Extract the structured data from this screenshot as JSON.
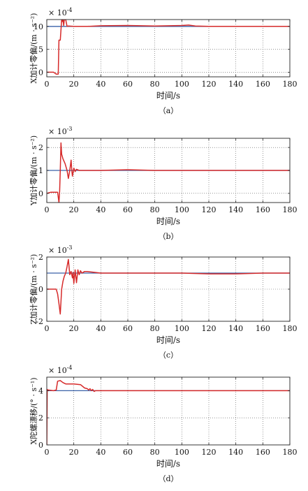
{
  "chart_data": [
    {
      "type": "line",
      "caption": "（a）",
      "multiplier": "× 10^-4",
      "multiplier_base": "× 10",
      "multiplier_exp": "-4",
      "ylabel": "X加计零偏/(m · s⁻²)",
      "xlabel": "时间/s",
      "xlim": [
        0,
        180
      ],
      "ylim": [
        -1,
        11.5
      ],
      "xticks": [
        0,
        20,
        40,
        60,
        80,
        100,
        120,
        140,
        160,
        180
      ],
      "yticks": [
        0,
        5,
        10
      ],
      "grid": true,
      "series": [
        {
          "color": "#3a62a8",
          "x": [
            0,
            180
          ],
          "y": [
            10,
            10
          ]
        },
        {
          "color": "#d62a2a",
          "x": [
            0,
            2,
            5,
            7,
            8.5,
            9,
            10,
            11,
            11.2,
            12,
            12.5,
            13,
            14,
            15,
            16,
            20,
            30,
            40,
            60,
            80,
            100,
            105,
            110,
            120,
            140,
            160,
            180
          ],
          "y": [
            0,
            0,
            0,
            -0.4,
            -0.4,
            7,
            7,
            11.5,
            11,
            11.5,
            10.2,
            11.5,
            11.5,
            10,
            10.1,
            10,
            10,
            10.15,
            10.2,
            10.1,
            10.2,
            10.3,
            10.1,
            10,
            10,
            10,
            10
          ]
        }
      ]
    },
    {
      "type": "line",
      "caption": "（b）",
      "multiplier": "× 10^-3",
      "multiplier_base": "× 10",
      "multiplier_exp": "-3",
      "ylabel": "Y加计零偏/(m · s⁻²)",
      "xlabel": "时间/s",
      "xlim": [
        0,
        180
      ],
      "ylim": [
        -0.4,
        2.4
      ],
      "xticks": [
        0,
        20,
        40,
        60,
        80,
        100,
        120,
        140,
        160,
        180
      ],
      "yticks": [
        0,
        1,
        2
      ],
      "grid": true,
      "series": [
        {
          "color": "#3a62a8",
          "x": [
            0,
            180
          ],
          "y": [
            1,
            1
          ]
        },
        {
          "color": "#d62a2a",
          "x": [
            0,
            3,
            8,
            9,
            9.5,
            10,
            10.5,
            11,
            12,
            13.5,
            15,
            16,
            17,
            18,
            18.5,
            19,
            20,
            21,
            22,
            24,
            30,
            40,
            60,
            80,
            100,
            120,
            140,
            160,
            180
          ],
          "y": [
            0,
            0.05,
            0.05,
            -0.4,
            0.1,
            1.0,
            2.2,
            1.7,
            1.5,
            1.3,
            1.0,
            0.65,
            1.0,
            1.45,
            1.0,
            0.75,
            1.1,
            0.95,
            1.05,
            1.0,
            1.0,
            1.0,
            1.03,
            1.0,
            1.0,
            1.0,
            1.0,
            1.0,
            1.0
          ]
        }
      ]
    },
    {
      "type": "line",
      "caption": "（c）",
      "multiplier": "× 10^-3",
      "multiplier_base": "× 10",
      "multiplier_exp": "-3",
      "ylabel": "Z加计零偏/(m · s⁻²)",
      "xlabel": "时间/s",
      "xlim": [
        0,
        180
      ],
      "ylim": [
        -2,
        2
      ],
      "xticks": [
        0,
        20,
        40,
        60,
        80,
        100,
        120,
        140,
        160,
        180
      ],
      "yticks": [
        -2,
        0,
        2
      ],
      "grid": true,
      "series": [
        {
          "color": "#3a62a8",
          "x": [
            0,
            180
          ],
          "y": [
            1,
            1
          ]
        },
        {
          "color": "#d62a2a",
          "x": [
            0,
            4,
            7,
            8,
            9,
            10,
            11,
            12,
            13,
            14,
            15,
            16,
            17,
            18,
            19,
            19.5,
            20,
            21,
            22,
            23,
            24,
            25,
            26,
            28,
            30,
            35,
            40,
            60,
            80,
            100,
            120,
            140,
            160,
            180
          ],
          "y": [
            0,
            0,
            0,
            -0.3,
            -0.9,
            -1.55,
            0.0,
            0.5,
            0.8,
            1.0,
            1.4,
            1.85,
            0.9,
            1.1,
            0.7,
            1.05,
            0.35,
            1.2,
            0.4,
            1.2,
            0.9,
            1.15,
            1.0,
            1.1,
            1.1,
            1.05,
            1.0,
            1.0,
            1.0,
            1.0,
            0.95,
            0.95,
            1.0,
            1.0
          ]
        }
      ]
    },
    {
      "type": "line",
      "caption": "（d）",
      "multiplier": "× 10^-4",
      "multiplier_base": "× 10",
      "multiplier_exp": "-4",
      "ylabel": "X陀螺漂移/(° · s⁻¹)",
      "xlabel": "时间/s",
      "xlim": [
        0,
        180
      ],
      "ylim": [
        0,
        5
      ],
      "xticks": [
        0,
        20,
        40,
        60,
        80,
        100,
        120,
        140,
        160,
        180
      ],
      "yticks": [
        0,
        2,
        4
      ],
      "grid": true,
      "series": [
        {
          "color": "#3a62a8",
          "x": [
            0,
            180
          ],
          "y": [
            4,
            4
          ]
        },
        {
          "color": "#d62a2a",
          "x": [
            0,
            0.3,
            0.6,
            1,
            5,
            7,
            8,
            10,
            12,
            14,
            20,
            25,
            28,
            30,
            31,
            32,
            33,
            34,
            35,
            36,
            40,
            60,
            100,
            140,
            180
          ],
          "y": [
            0,
            4.1,
            4.05,
            4.05,
            4.0,
            4.05,
            4.7,
            4.75,
            4.6,
            4.5,
            4.5,
            4.45,
            4.2,
            4.15,
            4.05,
            4.15,
            4.0,
            4.1,
            3.95,
            4.0,
            4.0,
            4.0,
            4.0,
            4.0,
            4.0
          ]
        }
      ]
    }
  ]
}
